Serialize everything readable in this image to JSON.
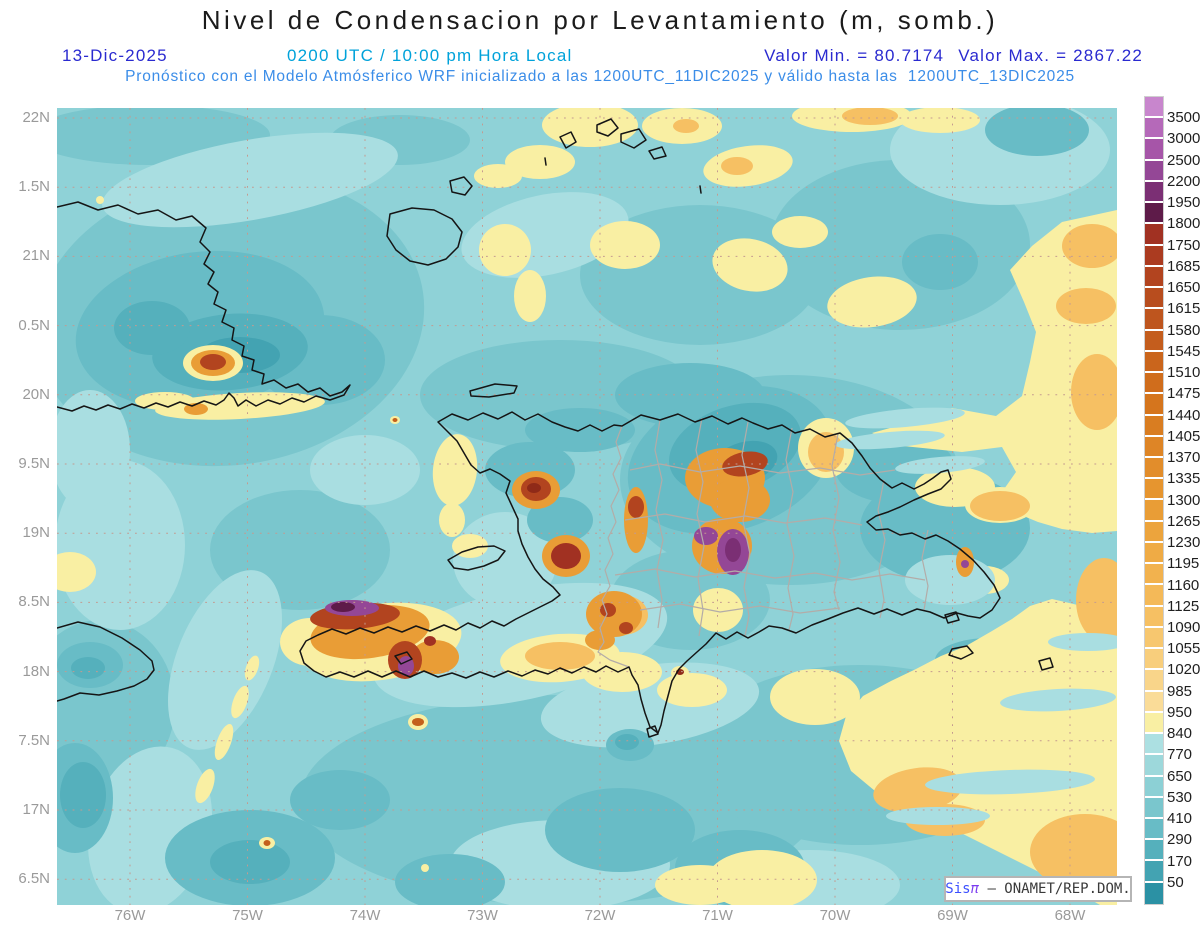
{
  "title": "Nivel de Condensacion por Levantamiento (m, somb.)",
  "subtitle": {
    "date": "13-Dic-2025",
    "time": "0200 UTC / 10:00 pm Hora Local",
    "valor_min": "Valor Min. = 80.7174",
    "valor_max": "Valor Max. = 2867.22",
    "forecast": "Pronóstico con el Modelo Atmósferico WRF inicializado a las 1200UTC_11DIC2025 y válido hasta las  1200UTC_13DIC2025"
  },
  "axes": {
    "lat_labels": [
      "22N",
      "1.5N",
      "21N",
      "0.5N",
      "20N",
      "9.5N",
      "19N",
      "8.5N",
      "18N",
      "7.5N",
      "17N",
      "6.5N"
    ],
    "lon_labels": [
      "76W",
      "75W",
      "74W",
      "73W",
      "72W",
      "71W",
      "70W",
      "69W",
      "68W"
    ]
  },
  "colorbar": {
    "tick_labels": [
      "3500",
      "3000",
      "2500",
      "2200",
      "1950",
      "1800",
      "1750",
      "1685",
      "1650",
      "1615",
      "1580",
      "1545",
      "1510",
      "1475",
      "1440",
      "1405",
      "1370",
      "1335",
      "1300",
      "1265",
      "1230",
      "1195",
      "1160",
      "1125",
      "1090",
      "1055",
      "1020",
      "985",
      "950",
      "840",
      "770",
      "650",
      "530",
      "410",
      "290",
      "170",
      "50"
    ],
    "colors": [
      "#c886cd",
      "#b569b9",
      "#a655a8",
      "#944796",
      "#7b2f74",
      "#5e1b49",
      "#a13122",
      "#ab3b20",
      "#b2441f",
      "#b84d1e",
      "#be551e",
      "#c45d1d",
      "#ca651c",
      "#d06d1c",
      "#d5751d",
      "#d97d21",
      "#de8526",
      "#e28d2b",
      "#e6952f",
      "#e99d36",
      "#eca43d",
      "#efab45",
      "#f2b24e",
      "#f4b958",
      "#f6c063",
      "#f7c76f",
      "#f8ce7c",
      "#f9d58a",
      "#fadc98",
      "#f9efa3",
      "#ace0e2",
      "#9dd8db",
      "#8cd0d5",
      "#7ac6cd",
      "#68bcc6",
      "#55b0bc",
      "#43a3b2",
      "#2b91a4"
    ]
  },
  "watermark": {
    "prefix": "Sis",
    "pi": "π",
    "suffix": " – ONAMET/REP.DOM."
  },
  "colors": {
    "title": "#1b1b1b",
    "date_blue": "#2a2ad0",
    "time_cyan": "#00a2da",
    "forecast_blue": "#3b8de8",
    "axis_gray": "#9a9a9a",
    "grid": "#c49a90",
    "ocean_base": "#8fd2d7"
  },
  "chart_data": {
    "type": "heatmap",
    "title": "Nivel de Condensacion por Levantamiento (m, somb.)",
    "units": "m",
    "valor_min": 80.7174,
    "valor_max": 2867.22,
    "levels": [
      50,
      170,
      290,
      410,
      530,
      650,
      770,
      840,
      950,
      985,
      1020,
      1055,
      1090,
      1125,
      1160,
      1195,
      1230,
      1265,
      1300,
      1335,
      1370,
      1405,
      1440,
      1475,
      1510,
      1545,
      1580,
      1615,
      1650,
      1685,
      1750,
      1800,
      1950,
      2200,
      2500,
      3000,
      3500
    ],
    "lat_range": [
      "16.5N",
      "22N"
    ],
    "lon_range": [
      "76W",
      "68W"
    ],
    "grid": "dotted 0.5deg lat / 1deg lon",
    "legend_position": "right"
  }
}
